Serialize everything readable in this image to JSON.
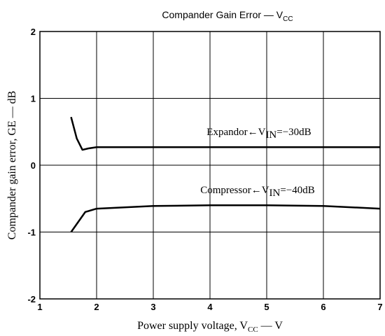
{
  "chart_data": {
    "type": "line",
    "title": [
      "Compander Gain Error — V",
      "CC"
    ],
    "xlabel": [
      "Power supply voltage, V",
      "CC",
      " — V"
    ],
    "ylabel": "Compander gain error, GE — dB",
    "xlim": [
      1,
      7
    ],
    "xticks": [
      1,
      2,
      3,
      4,
      5,
      6,
      7
    ],
    "ylim": [
      -2,
      2
    ],
    "yticks": [
      -2,
      -1,
      0,
      1,
      2
    ],
    "grid": true,
    "series": [
      {
        "color": "#000000",
        "x": [
          1.55,
          1.65,
          1.75,
          1.85,
          2,
          3,
          4,
          5,
          6,
          7
        ],
        "values": [
          0.72,
          0.4,
          0.23,
          0.25,
          0.27,
          0.27,
          0.27,
          0.27,
          0.27,
          0.27
        ]
      },
      {
        "color": "#000000",
        "x": [
          1.55,
          1.8,
          2,
          3,
          4,
          5,
          6,
          7
        ],
        "values": [
          -1,
          -0.7,
          -0.65,
          -0.61,
          -0.6,
          -0.6,
          -0.61,
          -0.65
        ]
      }
    ],
    "annotations": [
      [
        "Expandor←V",
        "IN",
        "=−30dB"
      ],
      [
        "Compressor←V",
        "IN",
        "=−40dB"
      ]
    ]
  }
}
